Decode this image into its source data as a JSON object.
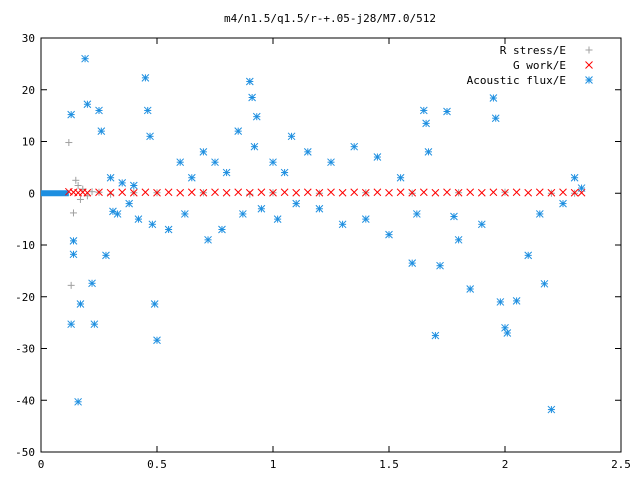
{
  "chart_data": {
    "type": "scatter",
    "title": "m4/n1.5/q1.5/r-+.05-j28/M7.0/512",
    "xlim": [
      0,
      2.5
    ],
    "ylim": [
      -50,
      30
    ],
    "xticks": [
      "0",
      "0.5",
      "1",
      "1.5",
      "2",
      "2.5"
    ],
    "yticks": [
      "30",
      "20",
      "10",
      "0",
      "-10",
      "-20",
      "-30",
      "-40",
      "-50"
    ],
    "legend_position": "top-right",
    "grid": false,
    "series": [
      {
        "name": "R stress/E",
        "marker": "plus",
        "color": "#a0a0a0",
        "x": [
          0.12,
          0.13,
          0.14,
          0.15,
          0.16,
          0.17,
          0.18,
          0.2,
          0.22,
          0.25,
          0.3,
          0.4,
          0.5,
          0.7,
          0.9,
          1.0,
          1.2,
          1.4,
          1.6,
          1.8,
          2.0,
          2.2,
          2.3
        ],
        "y": [
          9.8,
          -17.8,
          -3.8,
          2.5,
          1.5,
          -1.2,
          0.8,
          -0.5,
          0.3,
          0.2,
          -0.2,
          0.1,
          0.1,
          0.1,
          -0.2,
          0.1,
          0.0,
          0.1,
          0.0,
          0.1,
          0.2,
          0.0,
          0.0
        ]
      },
      {
        "name": "G work/E",
        "marker": "cross",
        "color": "#ff0000",
        "x": [
          0.12,
          0.14,
          0.16,
          0.18,
          0.2,
          0.25,
          0.3,
          0.35,
          0.4,
          0.45,
          0.5,
          0.55,
          0.6,
          0.65,
          0.7,
          0.75,
          0.8,
          0.85,
          0.9,
          0.95,
          1.0,
          1.05,
          1.1,
          1.15,
          1.2,
          1.25,
          1.3,
          1.35,
          1.4,
          1.45,
          1.5,
          1.55,
          1.6,
          1.65,
          1.7,
          1.75,
          1.8,
          1.85,
          1.9,
          1.95,
          2.0,
          2.05,
          2.1,
          2.15,
          2.2,
          2.25,
          2.3,
          2.33
        ],
        "y": [
          0.3,
          0.2,
          0.1,
          0.2,
          0.1,
          0.2,
          0.1,
          0.2,
          0.1,
          0.2,
          0.1,
          0.2,
          0.1,
          0.2,
          0.1,
          0.2,
          0.1,
          0.2,
          0.1,
          0.2,
          0.1,
          0.2,
          0.1,
          0.2,
          0.1,
          0.2,
          0.1,
          0.2,
          0.1,
          0.2,
          0.1,
          0.2,
          0.1,
          0.2,
          0.1,
          0.2,
          0.1,
          0.2,
          0.1,
          0.2,
          0.1,
          0.2,
          0.1,
          0.2,
          0.1,
          0.2,
          0.1,
          0.1
        ]
      },
      {
        "name": "Acoustic flux/E",
        "marker": "star",
        "color": "#1e8fe0",
        "x": [
          0.13,
          0.13,
          0.14,
          0.14,
          0.16,
          0.17,
          0.19,
          0.2,
          0.22,
          0.23,
          0.25,
          0.26,
          0.28,
          0.3,
          0.31,
          0.33,
          0.35,
          0.38,
          0.4,
          0.42,
          0.45,
          0.46,
          0.47,
          0.48,
          0.49,
          0.5,
          0.55,
          0.6,
          0.62,
          0.65,
          0.7,
          0.72,
          0.75,
          0.78,
          0.8,
          0.85,
          0.87,
          0.9,
          0.91,
          0.92,
          0.93,
          0.95,
          1.0,
          1.02,
          1.05,
          1.08,
          1.1,
          1.15,
          1.2,
          1.25,
          1.3,
          1.35,
          1.4,
          1.45,
          1.5,
          1.55,
          1.6,
          1.62,
          1.65,
          1.66,
          1.67,
          1.7,
          1.72,
          1.75,
          1.78,
          1.8,
          1.85,
          1.9,
          1.95,
          1.96,
          1.98,
          2.0,
          2.01,
          2.05,
          2.1,
          2.15,
          2.17,
          2.2,
          2.25,
          2.3,
          2.33
        ],
        "y": [
          15.2,
          -25.3,
          -9.2,
          -11.8,
          -40.3,
          -21.4,
          26.0,
          17.2,
          -17.4,
          -25.3,
          16.0,
          12.0,
          -12.0,
          3.0,
          -3.5,
          -4.0,
          2.0,
          -2.0,
          1.5,
          -5.0,
          22.3,
          16.0,
          11.0,
          -6.0,
          -21.4,
          -28.4,
          -7.0,
          6.0,
          -4.0,
          3.0,
          8.0,
          -9.0,
          6.0,
          -7.0,
          4.0,
          12.0,
          -4.0,
          21.6,
          18.5,
          9.0,
          14.8,
          -3.0,
          6.0,
          -5.0,
          4.0,
          11.0,
          -2.0,
          8.0,
          -3.0,
          6.0,
          -6.0,
          9.0,
          -5.0,
          7.0,
          -8.0,
          3.0,
          -13.5,
          -4.0,
          16.0,
          13.5,
          8.0,
          -27.5,
          -14.0,
          15.8,
          -4.5,
          -9.0,
          -18.5,
          -6.0,
          18.4,
          14.5,
          -21.0,
          -26.0,
          -27.0,
          -20.8,
          -12.0,
          -4.0,
          -17.5,
          -41.8,
          -2.0,
          3.0,
          1.0
        ]
      }
    ]
  }
}
